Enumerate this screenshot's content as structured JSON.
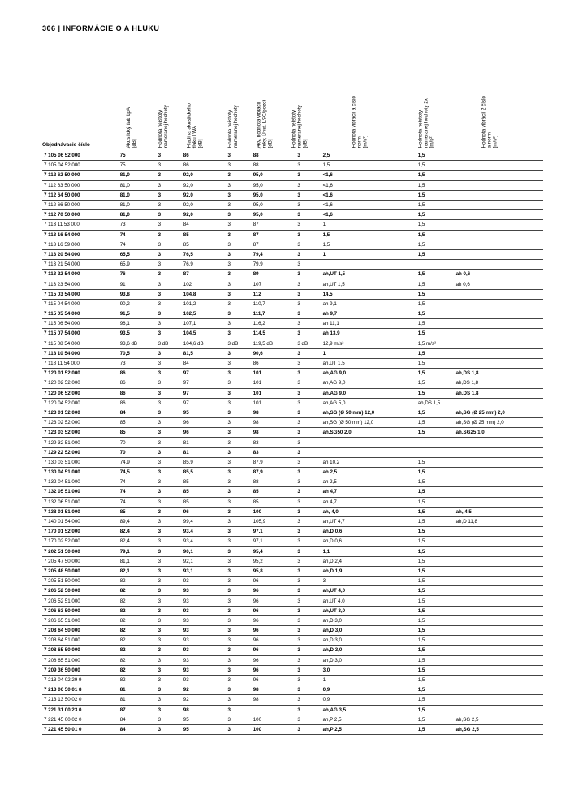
{
  "header": {
    "page": "306",
    "title": "INFORMÁCIE O A HLUKU"
  },
  "table": {
    "headers": [
      "Objednávacie číslo",
      "Akustický tlak LpA\n[dB]",
      "Hodnota neistoty\nnameranej hodnoty",
      "Hladina akustického\ntlaku LWA\n[dB]",
      "Hodnota neistoty\nnameranej hodnoty",
      "Akv. hodnota vibrácií\nruky, Únst. LSC/pozdi\n[dB]",
      "Hodnota neistoty\nnameranej hodnoty\n[dB]",
      "Hodnota vibrácií a číslo\nnorm.\n[m/s²]",
      "Hodnota neistoty\nnameranej hodnoty 2x\n[m/s²]",
      "Hodnota vibrácií 2 číslo\na norm.\n[m/s²]"
    ],
    "rows": [
      {
        "b": true,
        "c": [
          "7 105 06 52 000",
          "75",
          "3",
          "86",
          "3",
          "88",
          "3",
          "2,5",
          "1,5",
          ""
        ]
      },
      {
        "b": false,
        "c": [
          "7 105 04 52 000",
          "75",
          "3",
          "86",
          "3",
          "88",
          "3",
          "1,5",
          "1,5",
          ""
        ]
      },
      {
        "b": true,
        "c": [
          "7 112 62 50 000",
          "81,0",
          "3",
          "92,0",
          "3",
          "95,0",
          "3",
          "<1,6",
          "1,5",
          ""
        ]
      },
      {
        "b": false,
        "c": [
          "7 112 63 50 000",
          "81,0",
          "3",
          "92,0",
          "3",
          "95,0",
          "3",
          "<1,6",
          "1,5",
          ""
        ]
      },
      {
        "b": true,
        "c": [
          "7 112 64 50 000",
          "81,0",
          "3",
          "92,0",
          "3",
          "95,0",
          "3",
          "<1,6",
          "1,5",
          ""
        ]
      },
      {
        "b": false,
        "c": [
          "7 112 66 50 000",
          "81,0",
          "3",
          "92,0",
          "3",
          "95,0",
          "3",
          "<1,6",
          "1,5",
          ""
        ]
      },
      {
        "b": true,
        "c": [
          "7 112 70 50 000",
          "81,0",
          "3",
          "92,0",
          "3",
          "95,0",
          "3",
          "<1,6",
          "1,5",
          ""
        ]
      },
      {
        "b": false,
        "c": [
          "7 113 11 53 000",
          "73",
          "3",
          "84",
          "3",
          "87",
          "3",
          "1",
          "1,5",
          ""
        ]
      },
      {
        "b": true,
        "c": [
          "7 113 16 54 000",
          "74",
          "3",
          "85",
          "3",
          "87",
          "3",
          "1,5",
          "1,5",
          ""
        ]
      },
      {
        "b": false,
        "c": [
          "7 113 16 59 000",
          "74",
          "3",
          "85",
          "3",
          "87",
          "3",
          "1,5",
          "1,5",
          ""
        ]
      },
      {
        "b": true,
        "c": [
          "7 113 20 54 000",
          "65,5",
          "3",
          "76,5",
          "3",
          "79,4",
          "3",
          "1",
          "1,5",
          ""
        ]
      },
      {
        "b": false,
        "c": [
          "7 113 21 54 000",
          "65,9",
          "3",
          "76,9",
          "3",
          "79,9",
          "3",
          "",
          "",
          ""
        ]
      },
      {
        "b": true,
        "c": [
          "7 113 22 54 000",
          "76",
          "3",
          "87",
          "3",
          "89",
          "3",
          "ah,UT 1,5",
          "1,5",
          "ah 0,6"
        ]
      },
      {
        "b": false,
        "c": [
          "7 113 23 54 000",
          "91",
          "3",
          "102",
          "3",
          "107",
          "3",
          "ah,UT 1,5",
          "1,5",
          "ah 0,6"
        ]
      },
      {
        "b": true,
        "c": [
          "7 115 03 54 000",
          "93,8",
          "3",
          "104,8",
          "3",
          "112",
          "3",
          "14,5",
          "1,5",
          ""
        ]
      },
      {
        "b": false,
        "c": [
          "7 115 04 54 000",
          "90,2",
          "3",
          "101,2",
          "3",
          "110,7",
          "3",
          "ah 9,1",
          "1,5",
          ""
        ]
      },
      {
        "b": true,
        "c": [
          "7 115 05 54 000",
          "91,5",
          "3",
          "102,5",
          "3",
          "111,7",
          "3",
          "ah 9,7",
          "1,5",
          ""
        ]
      },
      {
        "b": false,
        "c": [
          "7 115 06 54 000",
          "96,1",
          "3",
          "107,1",
          "3",
          "116,2",
          "3",
          "ah 11,1",
          "1,5",
          ""
        ]
      },
      {
        "b": true,
        "c": [
          "7 115 07 54 000",
          "93,5",
          "3",
          "104,5",
          "3",
          "114,5",
          "3",
          "ah 13,9",
          "1,5",
          ""
        ]
      },
      {
        "b": false,
        "c": [
          "7 115 08 54 000",
          "93,6 dB",
          "3 dB",
          "104,6 dB",
          "3 dB",
          "119,5 dB",
          "3 dB",
          "12,9 m/s²",
          "1,5 m/s²",
          ""
        ]
      },
      {
        "b": true,
        "c": [
          "7 118 10 54 000",
          "70,5",
          "3",
          "81,5",
          "3",
          "90,6",
          "3",
          "1",
          "1,5",
          ""
        ]
      },
      {
        "b": false,
        "c": [
          "7 118 11 54 000",
          "73",
          "3",
          "84",
          "3",
          "86",
          "3",
          "ah,UT 1,5",
          "1,5",
          ""
        ]
      },
      {
        "b": true,
        "c": [
          "7 120 01 52 000",
          "86",
          "3",
          "97",
          "3",
          "101",
          "3",
          "ah,AG 9,0",
          "1,5",
          "ah,DS 1,8"
        ]
      },
      {
        "b": false,
        "c": [
          "7 120 02 52 000",
          "86",
          "3",
          "97",
          "3",
          "101",
          "3",
          "ah,AG 9,0",
          "1,5",
          "ah,DS 1,8"
        ]
      },
      {
        "b": true,
        "c": [
          "7 120 06 52 000",
          "86",
          "3",
          "97",
          "3",
          "101",
          "3",
          "ah,AG 9,0",
          "1,5",
          "ah,DS 1,8"
        ]
      },
      {
        "b": false,
        "c": [
          "7 120 04 52 000",
          "86",
          "3",
          "97",
          "3",
          "101",
          "3",
          "ah,AG 5,0",
          "ah,DS 1,5",
          ""
        ]
      },
      {
        "b": true,
        "c": [
          "7 123 01 52 000",
          "84",
          "3",
          "95",
          "3",
          "98",
          "3",
          "ah,SG (Ø 50 mm) 12,0",
          "1,5",
          "ah,SG (Ø 25 mm) 2,0"
        ]
      },
      {
        "b": false,
        "c": [
          "7 123 02 52 000",
          "85",
          "3",
          "96",
          "3",
          "98",
          "3",
          "ah,SG (Ø 50 mm) 12,0",
          "1,5",
          "ah,SG (Ø 25 mm) 2,0"
        ]
      },
      {
        "b": true,
        "c": [
          "7 123 03 52 000",
          "85",
          "3",
          "96",
          "3",
          "98",
          "3",
          "ah,SG50 2,0",
          "1,5",
          "ah,SG25 1,0"
        ]
      },
      {
        "b": false,
        "c": [
          "7 129 32 51 000",
          "70",
          "3",
          "81",
          "3",
          "83",
          "3",
          "",
          "",
          ""
        ]
      },
      {
        "b": true,
        "c": [
          "7 129 22 52 000",
          "70",
          "3",
          "81",
          "3",
          "83",
          "3",
          "",
          "",
          ""
        ]
      },
      {
        "b": false,
        "c": [
          "7 130 03 51 000",
          "74,9",
          "3",
          "85,9",
          "3",
          "87,9",
          "3",
          "ah 10,2",
          "1,5",
          ""
        ]
      },
      {
        "b": true,
        "c": [
          "7 130 04 51 000",
          "74,5",
          "3",
          "85,5",
          "3",
          "87,9",
          "3",
          "ah 2,5",
          "1,5",
          ""
        ]
      },
      {
        "b": false,
        "c": [
          "7 132 04 51 000",
          "74",
          "3",
          "85",
          "3",
          "88",
          "3",
          "ah 2,5",
          "1,5",
          ""
        ]
      },
      {
        "b": true,
        "c": [
          "7 132 05 51 000",
          "74",
          "3",
          "85",
          "3",
          "85",
          "3",
          "ah 4,7",
          "1,5",
          ""
        ]
      },
      {
        "b": false,
        "c": [
          "7 132 06 51 000",
          "74",
          "3",
          "85",
          "3",
          "85",
          "3",
          "ah 4,7",
          "1,5",
          ""
        ]
      },
      {
        "b": true,
        "c": [
          "7 138 01 51 000",
          "85",
          "3",
          "96",
          "3",
          "100",
          "3",
          "ah, 4,0",
          "1,5",
          "ah, 4,5"
        ]
      },
      {
        "b": false,
        "c": [
          "7 140 01 54 000",
          "89,4",
          "3",
          "99,4",
          "3",
          "105,9",
          "3",
          "ah,UT 4,7",
          "1,5",
          "ah,D 11,8"
        ]
      },
      {
        "b": true,
        "c": [
          "7 170 01 52 000",
          "82,4",
          "3",
          "93,4",
          "3",
          "97,1",
          "3",
          "ah,D 0,6",
          "1,5",
          ""
        ]
      },
      {
        "b": false,
        "c": [
          "7 170 02 52 000",
          "82,4",
          "3",
          "93,4",
          "3",
          "97,1",
          "3",
          "ah,D 0,6",
          "1,5",
          ""
        ]
      },
      {
        "b": true,
        "c": [
          "7 202 51 50 000",
          "79,1",
          "3",
          "90,1",
          "3",
          "95,4",
          "3",
          "1,1",
          "1,5",
          ""
        ]
      },
      {
        "b": false,
        "c": [
          "7 205 47 50 000",
          "81,1",
          "3",
          "92,1",
          "3",
          "95,2",
          "3",
          "ah,D 2,4",
          "1,5",
          ""
        ]
      },
      {
        "b": true,
        "c": [
          "7 205 48 50 000",
          "82,1",
          "3",
          "93,1",
          "3",
          "95,8",
          "3",
          "ah,D 1,9",
          "1,5",
          ""
        ]
      },
      {
        "b": false,
        "c": [
          "7 205 51 50 000",
          "82",
          "3",
          "93",
          "3",
          "96",
          "3",
          "3",
          "1,5",
          ""
        ]
      },
      {
        "b": true,
        "c": [
          "7 206 52 50 000",
          "82",
          "3",
          "93",
          "3",
          "96",
          "3",
          "ah,UT 4,0",
          "1,5",
          ""
        ]
      },
      {
        "b": false,
        "c": [
          "7 206 52 51 000",
          "82",
          "3",
          "93",
          "3",
          "96",
          "3",
          "ah,UT 4,0",
          "1,5",
          ""
        ]
      },
      {
        "b": true,
        "c": [
          "7 206 63 50 000",
          "82",
          "3",
          "93",
          "3",
          "96",
          "3",
          "ah,UT 3,0",
          "1,5",
          ""
        ]
      },
      {
        "b": false,
        "c": [
          "7 206 65 51 000",
          "82",
          "3",
          "93",
          "3",
          "96",
          "3",
          "ah,D 3,0",
          "1,5",
          ""
        ]
      },
      {
        "b": true,
        "c": [
          "7 208 64 50 000",
          "82",
          "3",
          "93",
          "3",
          "96",
          "3",
          "ah,D 3,0",
          "1,5",
          ""
        ]
      },
      {
        "b": false,
        "c": [
          "7 208 64 51 000",
          "82",
          "3",
          "93",
          "3",
          "96",
          "3",
          "ah,D 3,0",
          "1,5",
          ""
        ]
      },
      {
        "b": true,
        "c": [
          "7 208 65 50 000",
          "82",
          "3",
          "93",
          "3",
          "96",
          "3",
          "ah,D 3,0",
          "1,5",
          ""
        ]
      },
      {
        "b": false,
        "c": [
          "7 208 65 51 000",
          "82",
          "3",
          "93",
          "3",
          "96",
          "3",
          "ah,D 3,0",
          "1,5",
          ""
        ]
      },
      {
        "b": true,
        "c": [
          "7 209 36 50 000",
          "82",
          "3",
          "93",
          "3",
          "96",
          "3",
          "3,0",
          "1,5",
          ""
        ]
      },
      {
        "b": false,
        "c": [
          "7 213 04 02 29 9",
          "82",
          "3",
          "93",
          "3",
          "96",
          "3",
          "1",
          "1,5",
          ""
        ]
      },
      {
        "b": true,
        "c": [
          "7 213 06 50 01 8",
          "81",
          "3",
          "92",
          "3",
          "98",
          "3",
          "0,9",
          "1,5",
          ""
        ]
      },
      {
        "b": false,
        "c": [
          "7 213 13 50 02 0",
          "81",
          "3",
          "92",
          "3",
          "98",
          "3",
          "0,9",
          "1,5",
          ""
        ]
      },
      {
        "b": true,
        "c": [
          "7 221 31 00 23 0",
          "87",
          "3",
          "98",
          "3",
          "",
          "3",
          "ah,AG 3,5",
          "1,5",
          ""
        ]
      },
      {
        "b": false,
        "c": [
          "7 221 45 00 02 0",
          "84",
          "3",
          "95",
          "3",
          "100",
          "3",
          "ah,P 2,5",
          "1,5",
          "ah,SG 2,5"
        ]
      },
      {
        "b": true,
        "c": [
          "7 221 45 50 01 0",
          "84",
          "3",
          "95",
          "3",
          "100",
          "3",
          "ah,P 2,5",
          "1,5",
          "ah,SG 2,5"
        ]
      }
    ]
  }
}
